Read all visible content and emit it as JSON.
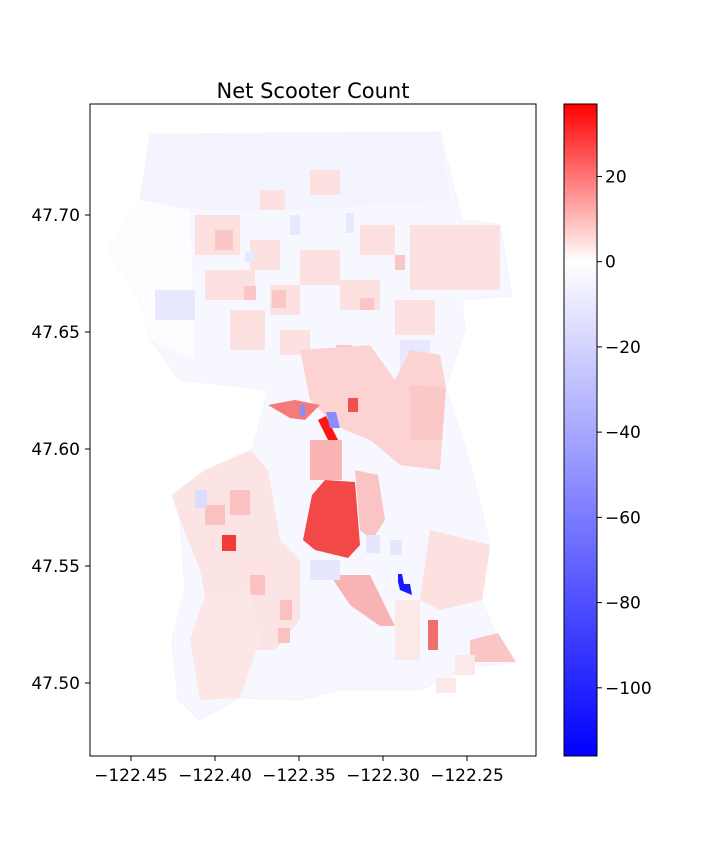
{
  "title": "Net Scooter Count",
  "map": {
    "x_ticks": [
      "−122.45",
      "−122.40",
      "−122.35",
      "−122.30",
      "−122.25"
    ],
    "y_ticks": [
      "47.70",
      "47.65",
      "47.60",
      "47.55",
      "47.50"
    ]
  },
  "colorbar": {
    "colormap": "bwr",
    "min": -116,
    "max": 37,
    "ticks": [
      "20",
      "0",
      "−20",
      "−40",
      "−60",
      "−80",
      "−100"
    ],
    "tick_values": [
      20,
      0,
      -20,
      -40,
      -60,
      -80,
      -100
    ]
  },
  "colors": {
    "negative": "#0000ff",
    "zero": "#ffffff",
    "positive": "#ff0000",
    "strong_positive_region": "#f04848",
    "strong_negative_region": "#1a1aff"
  }
}
